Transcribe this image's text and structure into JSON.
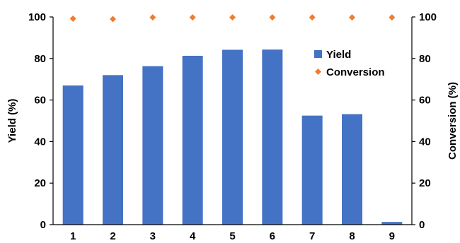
{
  "chart_data": {
    "type": "bar",
    "categories": [
      "1",
      "2",
      "3",
      "4",
      "5",
      "6",
      "7",
      "8",
      "9"
    ],
    "series": [
      {
        "name": "Yield",
        "type": "bar",
        "axis": "left",
        "color": "#4472C4",
        "values": [
          67,
          72,
          76.3,
          81.3,
          84.2,
          84.3,
          52.5,
          53.2,
          1.3
        ]
      },
      {
        "name": "Conversion",
        "type": "scatter",
        "marker": "diamond",
        "axis": "right",
        "color": "#ED7D31",
        "values": [
          99.2,
          99.0,
          99.8,
          99.8,
          99.8,
          99.8,
          99.8,
          99.8,
          99.8
        ]
      }
    ],
    "ylabel": "Yield (%)",
    "y2label": "Conversion (%)",
    "ylim": [
      0,
      100
    ],
    "y2lim": [
      0,
      100
    ],
    "yticks": [
      0,
      20,
      40,
      60,
      80,
      100
    ],
    "y2ticks": [
      0,
      20,
      40,
      60,
      80,
      100
    ],
    "grid": false,
    "legend_position": "top-right"
  }
}
